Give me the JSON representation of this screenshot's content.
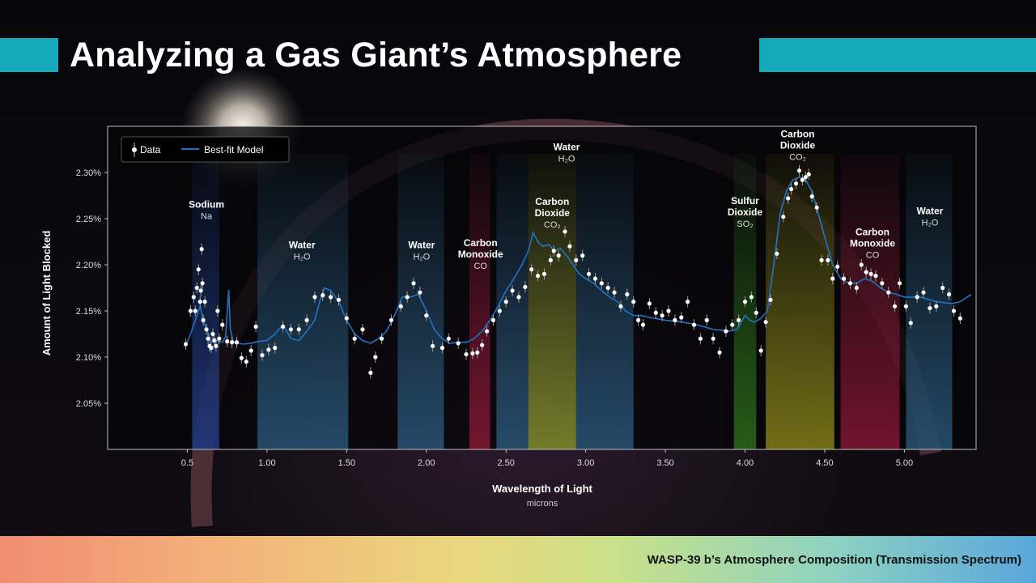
{
  "title": "Analyzing a Gas Giant’s Atmosphere",
  "footer": "WASP-39 b’s Atmosphere Composition (Transmission Spectrum)",
  "colors": {
    "accent": "#16a8b8",
    "model": "#1f74c4",
    "data": "#ffffff"
  },
  "chart_data": {
    "type": "scatter",
    "xlabel": "Wavelength of Light",
    "xunit": "microns",
    "ylabel": "Amount of Light Blocked",
    "xlim": [
      0.0,
      5.45
    ],
    "ylim": [
      2.0,
      2.35
    ],
    "xticks": [
      {
        "v": 0.5,
        "label": "0.5"
      },
      {
        "v": 1.0,
        "label": "1.00"
      },
      {
        "v": 1.5,
        "label": "1.50"
      },
      {
        "v": 2.0,
        "label": "2.00"
      },
      {
        "v": 2.5,
        "label": "2.50"
      },
      {
        "v": 3.0,
        "label": "3.00"
      },
      {
        "v": 3.5,
        "label": "3.50"
      },
      {
        "v": 4.0,
        "label": "4.00"
      },
      {
        "v": 4.5,
        "label": "4.50"
      },
      {
        "v": 5.0,
        "label": "5.00"
      }
    ],
    "yticks": [
      {
        "v": 2.05,
        "label": "2.05%"
      },
      {
        "v": 2.1,
        "label": "2.10%"
      },
      {
        "v": 2.15,
        "label": "2.15%"
      },
      {
        "v": 2.2,
        "label": "2.20%"
      },
      {
        "v": 2.25,
        "label": "2.25%"
      },
      {
        "v": 2.3,
        "label": "2.30%"
      }
    ],
    "legend": {
      "position": "top-left",
      "items": [
        "Data",
        "Best-fit Model"
      ]
    },
    "bands": [
      {
        "x0": 0.53,
        "x1": 0.7,
        "color": "#2f58c8"
      },
      {
        "x0": 0.94,
        "x1": 1.51,
        "color": "#3a7fb0"
      },
      {
        "x0": 1.82,
        "x1": 2.11,
        "color": "#3a7fb0"
      },
      {
        "x0": 2.27,
        "x1": 2.4,
        "color": "#c8204a"
      },
      {
        "x0": 2.44,
        "x1": 2.64,
        "color": "#3a7fb0"
      },
      {
        "x0": 2.64,
        "x1": 2.94,
        "color": "#c8d840"
      },
      {
        "x0": 2.94,
        "x1": 3.3,
        "color": "#3a7fb0"
      },
      {
        "x0": 3.93,
        "x1": 4.07,
        "color": "#3fa020"
      },
      {
        "x0": 4.13,
        "x1": 4.56,
        "color": "#c8c020"
      },
      {
        "x0": 4.6,
        "x1": 4.97,
        "color": "#c8204a"
      },
      {
        "x0": 5.01,
        "x1": 5.3,
        "color": "#3a7fb0"
      }
    ],
    "annotations": [
      {
        "x": 0.62,
        "y": 2.262,
        "lines": [
          "Sodium"
        ],
        "formula": "Na"
      },
      {
        "x": 1.22,
        "y": 2.218,
        "lines": [
          "Water"
        ],
        "formula": "H₂O"
      },
      {
        "x": 1.97,
        "y": 2.218,
        "lines": [
          "Water"
        ],
        "formula": "H₂O"
      },
      {
        "x": 2.34,
        "y": 2.22,
        "lines": [
          "Carbon",
          "Monoxide"
        ],
        "formula": "CO"
      },
      {
        "x": 2.88,
        "y": 2.324,
        "lines": [
          "Water"
        ],
        "formula": "H₂O"
      },
      {
        "x": 2.79,
        "y": 2.265,
        "lines": [
          "Carbon",
          "Dioxide"
        ],
        "formula": "CO₂"
      },
      {
        "x": 4.0,
        "y": 2.266,
        "lines": [
          "Sulfur",
          "Dioxide"
        ],
        "formula": "SO₂"
      },
      {
        "x": 4.33,
        "y": 2.338,
        "lines": [
          "Carbon",
          "Dioxide"
        ],
        "formula": "CO₂"
      },
      {
        "x": 4.8,
        "y": 2.232,
        "lines": [
          "Carbon",
          "Monoxide"
        ],
        "formula": "CO"
      },
      {
        "x": 5.16,
        "y": 2.255,
        "lines": [
          "Water"
        ],
        "formula": "H₂O"
      }
    ],
    "series": [
      {
        "name": "Data",
        "points": [
          [
            0.49,
            2.114
          ],
          [
            0.52,
            2.15
          ],
          [
            0.54,
            2.165
          ],
          [
            0.55,
            2.15
          ],
          [
            0.56,
            2.175
          ],
          [
            0.57,
            2.195
          ],
          [
            0.58,
            2.16
          ],
          [
            0.585,
            2.172
          ],
          [
            0.59,
            2.217
          ],
          [
            0.595,
            2.18
          ],
          [
            0.6,
            2.14
          ],
          [
            0.61,
            2.16
          ],
          [
            0.62,
            2.13
          ],
          [
            0.63,
            2.12
          ],
          [
            0.64,
            2.112
          ],
          [
            0.65,
            2.11
          ],
          [
            0.66,
            2.125
          ],
          [
            0.67,
            2.118
          ],
          [
            0.68,
            2.112
          ],
          [
            0.69,
            2.15
          ],
          [
            0.7,
            2.12
          ],
          [
            0.72,
            2.135
          ],
          [
            0.75,
            2.117
          ],
          [
            0.78,
            2.116
          ],
          [
            0.81,
            2.116
          ],
          [
            0.84,
            2.099
          ],
          [
            0.87,
            2.095
          ],
          [
            0.9,
            2.107
          ],
          [
            0.93,
            2.133
          ],
          [
            0.97,
            2.102
          ],
          [
            1.01,
            2.108
          ],
          [
            1.05,
            2.11
          ],
          [
            1.1,
            2.133
          ],
          [
            1.15,
            2.13
          ],
          [
            1.2,
            2.13
          ],
          [
            1.25,
            2.14
          ],
          [
            1.3,
            2.165
          ],
          [
            1.35,
            2.167
          ],
          [
            1.4,
            2.165
          ],
          [
            1.45,
            2.162
          ],
          [
            1.5,
            2.142
          ],
          [
            1.55,
            2.12
          ],
          [
            1.6,
            2.13
          ],
          [
            1.65,
            2.083
          ],
          [
            1.68,
            2.1
          ],
          [
            1.72,
            2.12
          ],
          [
            1.78,
            2.14
          ],
          [
            1.84,
            2.155
          ],
          [
            1.88,
            2.165
          ],
          [
            1.92,
            2.18
          ],
          [
            1.96,
            2.17
          ],
          [
            2.0,
            2.145
          ],
          [
            2.04,
            2.112
          ],
          [
            2.1,
            2.11
          ],
          [
            2.14,
            2.12
          ],
          [
            2.2,
            2.115
          ],
          [
            2.25,
            2.103
          ],
          [
            2.29,
            2.104
          ],
          [
            2.32,
            2.105
          ],
          [
            2.35,
            2.113
          ],
          [
            2.38,
            2.128
          ],
          [
            2.42,
            2.14
          ],
          [
            2.46,
            2.15
          ],
          [
            2.5,
            2.16
          ],
          [
            2.54,
            2.172
          ],
          [
            2.58,
            2.165
          ],
          [
            2.62,
            2.176
          ],
          [
            2.66,
            2.195
          ],
          [
            2.7,
            2.188
          ],
          [
            2.74,
            2.19
          ],
          [
            2.78,
            2.205
          ],
          [
            2.8,
            2.215
          ],
          [
            2.83,
            2.21
          ],
          [
            2.87,
            2.236
          ],
          [
            2.9,
            2.22
          ],
          [
            2.94,
            2.205
          ],
          [
            2.98,
            2.21
          ],
          [
            3.02,
            2.19
          ],
          [
            3.06,
            2.185
          ],
          [
            3.1,
            2.18
          ],
          [
            3.14,
            2.175
          ],
          [
            3.18,
            2.17
          ],
          [
            3.22,
            2.155
          ],
          [
            3.26,
            2.168
          ],
          [
            3.3,
            2.16
          ],
          [
            3.33,
            2.14
          ],
          [
            3.36,
            2.135
          ],
          [
            3.4,
            2.158
          ],
          [
            3.44,
            2.148
          ],
          [
            3.48,
            2.145
          ],
          [
            3.52,
            2.15
          ],
          [
            3.56,
            2.14
          ],
          [
            3.6,
            2.143
          ],
          [
            3.64,
            2.16
          ],
          [
            3.68,
            2.135
          ],
          [
            3.72,
            2.12
          ],
          [
            3.76,
            2.14
          ],
          [
            3.8,
            2.12
          ],
          [
            3.84,
            2.105
          ],
          [
            3.88,
            2.128
          ],
          [
            3.92,
            2.135
          ],
          [
            3.96,
            2.14
          ],
          [
            4.0,
            2.16
          ],
          [
            4.04,
            2.165
          ],
          [
            4.07,
            2.148
          ],
          [
            4.1,
            2.107
          ],
          [
            4.13,
            2.138
          ],
          [
            4.16,
            2.162
          ],
          [
            4.2,
            2.212
          ],
          [
            4.24,
            2.252
          ],
          [
            4.27,
            2.272
          ],
          [
            4.29,
            2.282
          ],
          [
            4.32,
            2.288
          ],
          [
            4.34,
            2.302
          ],
          [
            4.36,
            2.292
          ],
          [
            4.38,
            2.295
          ],
          [
            4.4,
            2.298
          ],
          [
            4.42,
            2.274
          ],
          [
            4.45,
            2.262
          ],
          [
            4.48,
            2.205
          ],
          [
            4.52,
            2.205
          ],
          [
            4.55,
            2.185
          ],
          [
            4.58,
            2.198
          ],
          [
            4.62,
            2.185
          ],
          [
            4.66,
            2.18
          ],
          [
            4.7,
            2.175
          ],
          [
            4.73,
            2.2
          ],
          [
            4.76,
            2.192
          ],
          [
            4.79,
            2.19
          ],
          [
            4.82,
            2.188
          ],
          [
            4.86,
            2.18
          ],
          [
            4.9,
            2.17
          ],
          [
            4.94,
            2.155
          ],
          [
            4.97,
            2.18
          ],
          [
            5.01,
            2.155
          ],
          [
            5.04,
            2.137
          ],
          [
            5.08,
            2.165
          ],
          [
            5.12,
            2.17
          ],
          [
            5.16,
            2.153
          ],
          [
            5.2,
            2.155
          ],
          [
            5.24,
            2.175
          ],
          [
            5.28,
            2.168
          ],
          [
            5.31,
            2.15
          ],
          [
            5.35,
            2.142
          ]
        ]
      },
      {
        "name": "Best-fit Model",
        "points": [
          [
            0.49,
            2.112
          ],
          [
            0.52,
            2.125
          ],
          [
            0.55,
            2.14
          ],
          [
            0.58,
            2.155
          ],
          [
            0.6,
            2.14
          ],
          [
            0.62,
            2.13
          ],
          [
            0.65,
            2.117
          ],
          [
            0.68,
            2.118
          ],
          [
            0.72,
            2.116
          ],
          [
            0.74,
            2.122
          ],
          [
            0.76,
            2.173
          ],
          [
            0.77,
            2.13
          ],
          [
            0.79,
            2.116
          ],
          [
            0.85,
            2.114
          ],
          [
            0.9,
            2.115
          ],
          [
            0.95,
            2.117
          ],
          [
            1.0,
            2.118
          ],
          [
            1.05,
            2.125
          ],
          [
            1.1,
            2.135
          ],
          [
            1.15,
            2.12
          ],
          [
            1.2,
            2.118
          ],
          [
            1.25,
            2.128
          ],
          [
            1.3,
            2.14
          ],
          [
            1.33,
            2.16
          ],
          [
            1.36,
            2.175
          ],
          [
            1.4,
            2.172
          ],
          [
            1.45,
            2.16
          ],
          [
            1.5,
            2.14
          ],
          [
            1.55,
            2.125
          ],
          [
            1.6,
            2.118
          ],
          [
            1.65,
            2.115
          ],
          [
            1.7,
            2.12
          ],
          [
            1.75,
            2.128
          ],
          [
            1.8,
            2.145
          ],
          [
            1.85,
            2.165
          ],
          [
            1.9,
            2.165
          ],
          [
            1.95,
            2.168
          ],
          [
            2.0,
            2.15
          ],
          [
            2.05,
            2.13
          ],
          [
            2.1,
            2.12
          ],
          [
            2.15,
            2.115
          ],
          [
            2.2,
            2.116
          ],
          [
            2.25,
            2.116
          ],
          [
            2.3,
            2.12
          ],
          [
            2.35,
            2.128
          ],
          [
            2.4,
            2.14
          ],
          [
            2.45,
            2.155
          ],
          [
            2.5,
            2.172
          ],
          [
            2.55,
            2.185
          ],
          [
            2.6,
            2.2
          ],
          [
            2.64,
            2.215
          ],
          [
            2.67,
            2.235
          ],
          [
            2.7,
            2.225
          ],
          [
            2.73,
            2.22
          ],
          [
            2.77,
            2.222
          ],
          [
            2.8,
            2.215
          ],
          [
            2.84,
            2.218
          ],
          [
            2.88,
            2.21
          ],
          [
            2.92,
            2.2
          ],
          [
            2.96,
            2.19
          ],
          [
            3.0,
            2.185
          ],
          [
            3.05,
            2.18
          ],
          [
            3.1,
            2.172
          ],
          [
            3.15,
            2.165
          ],
          [
            3.2,
            2.16
          ],
          [
            3.25,
            2.15
          ],
          [
            3.3,
            2.145
          ],
          [
            3.35,
            2.145
          ],
          [
            3.4,
            2.143
          ],
          [
            3.5,
            2.14
          ],
          [
            3.6,
            2.138
          ],
          [
            3.7,
            2.135
          ],
          [
            3.8,
            2.13
          ],
          [
            3.9,
            2.128
          ],
          [
            3.95,
            2.13
          ],
          [
            4.0,
            2.145
          ],
          [
            4.03,
            2.14
          ],
          [
            4.06,
            2.138
          ],
          [
            4.1,
            2.142
          ],
          [
            4.14,
            2.15
          ],
          [
            4.18,
            2.2
          ],
          [
            4.22,
            2.255
          ],
          [
            4.26,
            2.28
          ],
          [
            4.3,
            2.292
          ],
          [
            4.34,
            2.295
          ],
          [
            4.38,
            2.292
          ],
          [
            4.42,
            2.28
          ],
          [
            4.46,
            2.255
          ],
          [
            4.5,
            2.23
          ],
          [
            4.55,
            2.2
          ],
          [
            4.6,
            2.185
          ],
          [
            4.65,
            2.18
          ],
          [
            4.7,
            2.18
          ],
          [
            4.75,
            2.185
          ],
          [
            4.8,
            2.182
          ],
          [
            4.85,
            2.175
          ],
          [
            4.9,
            2.17
          ],
          [
            4.95,
            2.168
          ],
          [
            5.0,
            2.165
          ],
          [
            5.1,
            2.165
          ],
          [
            5.2,
            2.16
          ],
          [
            5.3,
            2.158
          ],
          [
            5.35,
            2.16
          ],
          [
            5.42,
            2.168
          ]
        ]
      }
    ]
  }
}
